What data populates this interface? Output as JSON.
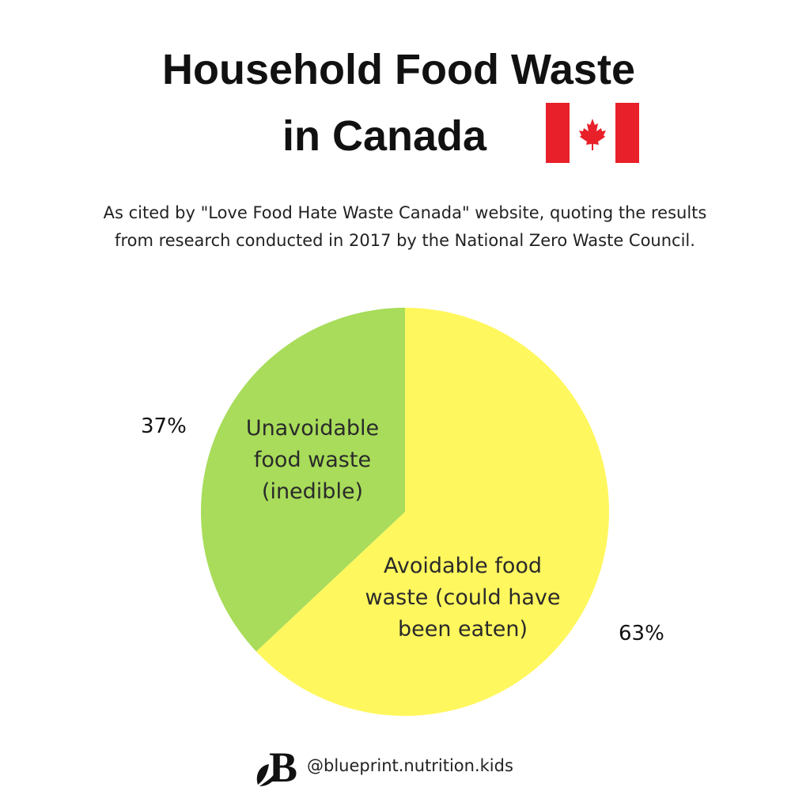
{
  "header": {
    "title_line_1": "Household Food Waste",
    "title_line_2": "in Canada",
    "subtitle_line_1": "As cited by \"Love Food Hate Waste Canada\" website, quoting the results",
    "subtitle_line_2": "from research conducted in 2017 by the National Zero Waste Council.",
    "flag_icon": "canada-flag-icon"
  },
  "colors": {
    "unavoidable": "#a8dc5a",
    "avoidable": "#fff75e",
    "flag_red": "#e8202a"
  },
  "chart_data": {
    "type": "pie",
    "title": "Household Food Waste in Canada",
    "slices": [
      {
        "name": "Unavoidable food waste (inedible)",
        "label_lines": [
          "Unavoidable",
          "food waste",
          "(inedible)"
        ],
        "percent_label": "37%",
        "value": 37
      },
      {
        "name": "Avoidable food waste (could have been eaten)",
        "label_lines": [
          "Avoidable food",
          "waste (could have",
          "been eaten)"
        ],
        "percent_label": "63%",
        "value": 63
      }
    ]
  },
  "footer": {
    "logo_letter": "B",
    "handle": "@blueprint.nutrition.kids"
  }
}
